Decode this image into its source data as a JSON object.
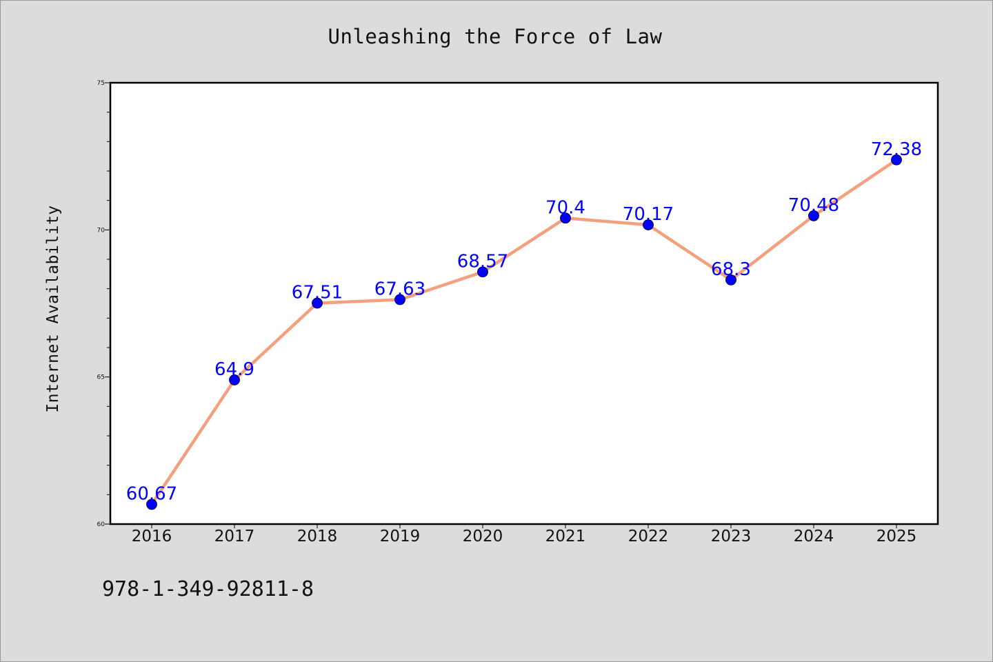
{
  "chart_data": {
    "type": "line",
    "title": "Unleashing the Force of Law",
    "xlabel": "",
    "ylabel": "Internet Availability",
    "categories": [
      "2016",
      "2017",
      "2018",
      "2019",
      "2020",
      "2021",
      "2022",
      "2023",
      "2024",
      "2025"
    ],
    "series": [
      {
        "values": [
          60.67,
          64.9,
          67.51,
          67.63,
          68.57,
          70.4,
          70.17,
          68.3,
          70.48,
          72.38
        ],
        "data_labels": [
          "60.67",
          "64.9",
          "67.51",
          "67.63",
          "68.57",
          "70.4",
          "70.17",
          "68.3",
          "70.48",
          "72.38"
        ]
      }
    ],
    "ylim": [
      60,
      75
    ],
    "yticks": [
      "60",
      "65",
      "70",
      "75"
    ],
    "grid": false,
    "legend": "none"
  },
  "annotation": "978-1-349-92811-8",
  "colors": {
    "background": "#dcdcdc",
    "plot_background": "#ffffff",
    "line": "#f4a07e",
    "marker": "#0000ff",
    "data_label": "#0000ff"
  }
}
